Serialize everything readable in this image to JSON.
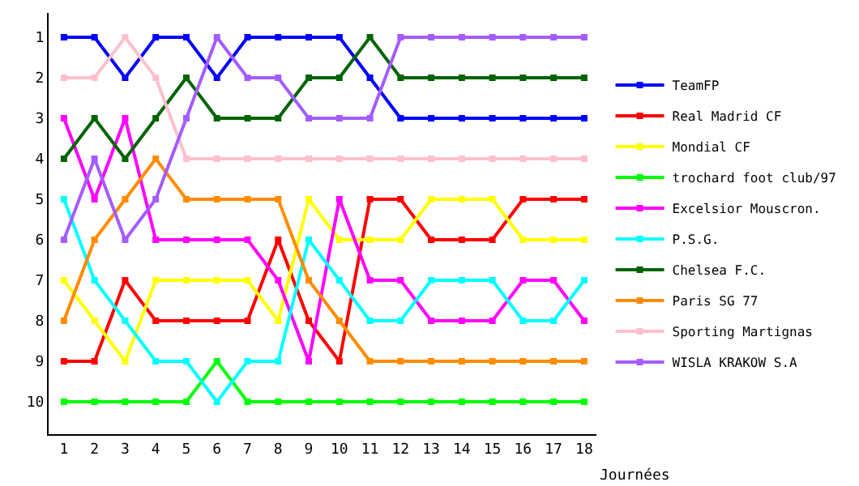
{
  "chart_data": {
    "type": "line",
    "xlabel": "Journées",
    "x": [
      1,
      2,
      3,
      4,
      5,
      6,
      7,
      8,
      9,
      10,
      11,
      12,
      13,
      14,
      15,
      16,
      17,
      18
    ],
    "xlim": [
      0.5,
      18.4
    ],
    "xticks": [
      1,
      2,
      3,
      4,
      5,
      6,
      7,
      8,
      9,
      10,
      11,
      12,
      13,
      14,
      15,
      16,
      17,
      18
    ],
    "ylim": [
      10.8,
      0.4
    ],
    "yticks": [
      1,
      2,
      3,
      4,
      5,
      6,
      7,
      8,
      9,
      10
    ],
    "legend": "right",
    "marker": "square",
    "line_style": "solid",
    "series": [
      {
        "name": "TeamFP",
        "color": "#0000ff",
        "values": [
          1,
          1,
          2,
          1,
          1,
          2,
          1,
          1,
          1,
          1,
          2,
          3,
          3,
          3,
          3,
          3,
          3,
          3
        ]
      },
      {
        "name": "Real Madrid CF",
        "color": "#ff0000",
        "values": [
          9,
          9,
          7,
          8,
          8,
          8,
          8,
          6,
          8,
          9,
          5,
          5,
          6,
          6,
          6,
          5,
          5,
          5
        ]
      },
      {
        "name": "Mondial CF",
        "color": "#ffff00",
        "values": [
          7,
          8,
          9,
          7,
          7,
          7,
          7,
          8,
          5,
          6,
          6,
          6,
          5,
          5,
          5,
          6,
          6,
          6
        ]
      },
      {
        "name": "trochard foot club/97",
        "color": "#00ff00",
        "values": [
          10,
          10,
          10,
          10,
          10,
          9,
          10,
          10,
          10,
          10,
          10,
          10,
          10,
          10,
          10,
          10,
          10,
          10
        ]
      },
      {
        "name": "Excelsior Mouscron.",
        "color": "#ff00ff",
        "values": [
          3,
          5,
          3,
          6,
          6,
          6,
          6,
          7,
          9,
          5,
          7,
          7,
          8,
          8,
          8,
          7,
          7,
          8
        ]
      },
      {
        "name": "P.S.G.",
        "color": "#00ffff",
        "values": [
          5,
          7,
          8,
          9,
          9,
          10,
          9,
          9,
          6,
          7,
          8,
          8,
          7,
          7,
          7,
          8,
          8,
          7
        ]
      },
      {
        "name": "Chelsea F.C.",
        "color": "#006400",
        "values": [
          4,
          3,
          4,
          3,
          2,
          3,
          3,
          3,
          2,
          2,
          1,
          2,
          2,
          2,
          2,
          2,
          2,
          2
        ]
      },
      {
        "name": "Paris SG 77",
        "color": "#ff8c00",
        "values": [
          8,
          6,
          5,
          4,
          5,
          5,
          5,
          5,
          7,
          8,
          9,
          9,
          9,
          9,
          9,
          9,
          9,
          9
        ]
      },
      {
        "name": "Sporting Martignas",
        "color": "#ffc0cb",
        "values": [
          2,
          2,
          1,
          2,
          4,
          4,
          4,
          4,
          4,
          4,
          4,
          4,
          4,
          4,
          4,
          4,
          4,
          4
        ]
      },
      {
        "name": "WISLA KRAKOW S.A",
        "color": "#a35cff",
        "values": [
          6,
          4,
          6,
          5,
          3,
          1,
          2,
          2,
          3,
          3,
          3,
          1,
          1,
          1,
          1,
          1,
          1,
          1
        ]
      }
    ]
  }
}
